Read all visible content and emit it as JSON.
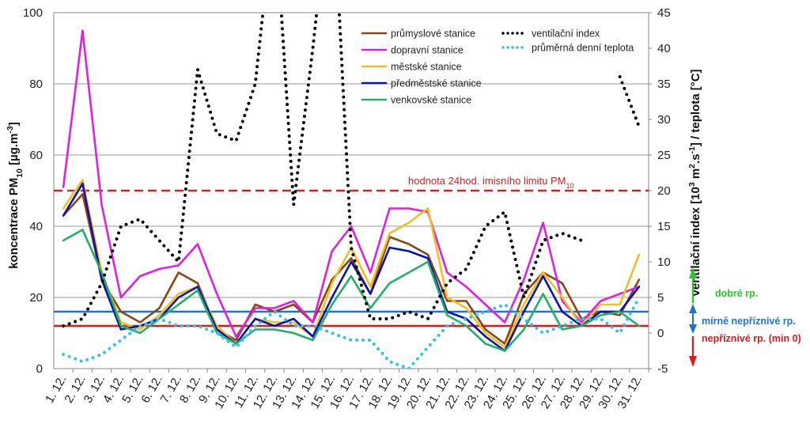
{
  "chart_data": {
    "type": "line",
    "x": [
      "1. 12.",
      "2. 12.",
      "3. 12.",
      "4. 12.",
      "5. 12.",
      "6. 12.",
      "7. 12.",
      "8. 12.",
      "9. 12.",
      "10. 12.",
      "11. 12.",
      "12. 12.",
      "13. 12.",
      "14. 12.",
      "15. 12.",
      "16. 12.",
      "17. 12.",
      "18. 12.",
      "19. 12.",
      "20. 12.",
      "21. 12.",
      "22. 12.",
      "23. 12.",
      "24. 12.",
      "25. 12.",
      "26. 12.",
      "27. 12.",
      "28. 12.",
      "29. 12.",
      "30. 12.",
      "31. 12."
    ],
    "ylabel_parts": [
      "koncentrace PM",
      "10",
      " [µg.m",
      "-3",
      "]"
    ],
    "y2label_parts": [
      "ventilační index [10",
      "3",
      " m",
      "2",
      ".s",
      "-1",
      "] / teplota [°C]"
    ],
    "ylim": [
      0,
      100
    ],
    "y2lim": [
      -5,
      45
    ],
    "yticks": [
      0,
      20,
      40,
      60,
      80,
      100
    ],
    "y2ticks": [
      -5,
      0,
      5,
      10,
      15,
      20,
      25,
      30,
      35,
      40,
      45
    ],
    "grid": true,
    "legend_position": "top-right",
    "series": [
      {
        "name": "průmyslové stanice",
        "axis": "left",
        "color": "#8B4513",
        "values": [
          43,
          49,
          25,
          16,
          13,
          17,
          27,
          24,
          11,
          8,
          18,
          16,
          18,
          13,
          25,
          31,
          21,
          37,
          35,
          32,
          19,
          19,
          11,
          7,
          21,
          27,
          24,
          14,
          16,
          15,
          25
        ]
      },
      {
        "name": "dopravní stanice",
        "axis": "left",
        "color": "#E020E0",
        "values": [
          51,
          95,
          46,
          20,
          26,
          28,
          29,
          35,
          21,
          9,
          17,
          17,
          19,
          13,
          33,
          40,
          27,
          45,
          45,
          44,
          27,
          23,
          18,
          13,
          25,
          41,
          19,
          13,
          19,
          21,
          23
        ]
      },
      {
        "name": "městské stanice",
        "axis": "left",
        "color": "#F5BE20",
        "values": [
          45,
          53,
          27,
          13,
          11,
          15,
          21,
          23,
          12,
          7,
          14,
          13,
          13,
          9,
          24,
          34,
          23,
          38,
          41,
          45,
          20,
          17,
          10,
          6,
          18,
          27,
          20,
          12,
          18,
          18,
          32
        ]
      },
      {
        "name": "předměstské stanice",
        "axis": "left",
        "color": "#0A14B4",
        "values": [
          43,
          52,
          25,
          11,
          12,
          14,
          20,
          23,
          11,
          7,
          14,
          12,
          14,
          9,
          20,
          30,
          21,
          34,
          33,
          31,
          16,
          14,
          9,
          5,
          16,
          26,
          16,
          12,
          16,
          16,
          23
        ]
      },
      {
        "name": "venkovské stanice",
        "axis": "left",
        "color": "#20B06A",
        "values": [
          36,
          39,
          27,
          12,
          10,
          14,
          18,
          22,
          10,
          7,
          11,
          11,
          10,
          8,
          18,
          26,
          17,
          24,
          27,
          30,
          15,
          12,
          7,
          5,
          11,
          21,
          11,
          12,
          15,
          16,
          12
        ]
      },
      {
        "name": "ventilační index",
        "axis": "right",
        "color": "#000000",
        "values": [
          1,
          2,
          7,
          15,
          16,
          13,
          10,
          37,
          28,
          27,
          35,
          60,
          18,
          40,
          65,
          12,
          2,
          2,
          3,
          2,
          7,
          9,
          15,
          17,
          5,
          13,
          14,
          13,
          null,
          36,
          29
        ]
      },
      {
        "name": "průměrná denní teplota",
        "axis": "right",
        "color": "#33C3E8",
        "values": [
          -3,
          -4,
          -3,
          -1,
          1,
          2,
          1,
          1,
          0,
          -2,
          1,
          3,
          1,
          1,
          0,
          -1,
          -1,
          -4,
          -5,
          -2,
          1,
          2,
          3,
          4,
          2,
          0,
          1,
          2,
          2,
          0,
          5
        ]
      }
    ],
    "reference_lines": [
      {
        "label_parts": [
          "hodnota 24hod. imisního limitu PM",
          "10"
        ],
        "axis": "left",
        "value": 50,
        "color": "#CC2222",
        "style": "dashed"
      },
      {
        "label": "",
        "axis": "left",
        "value": 16,
        "color": "#1E74D0",
        "style": "solid"
      },
      {
        "label": "",
        "axis": "left",
        "value": 12,
        "color": "#E01818",
        "style": "solid"
      }
    ],
    "condition_legend": [
      {
        "label": "dobré rp.",
        "color": "#22CC22"
      },
      {
        "label": "mírně nepříznivé rp.",
        "color": "#1E74D0"
      },
      {
        "label": "nepříznivé rp. (min 0)",
        "color": "#E01818"
      }
    ]
  }
}
